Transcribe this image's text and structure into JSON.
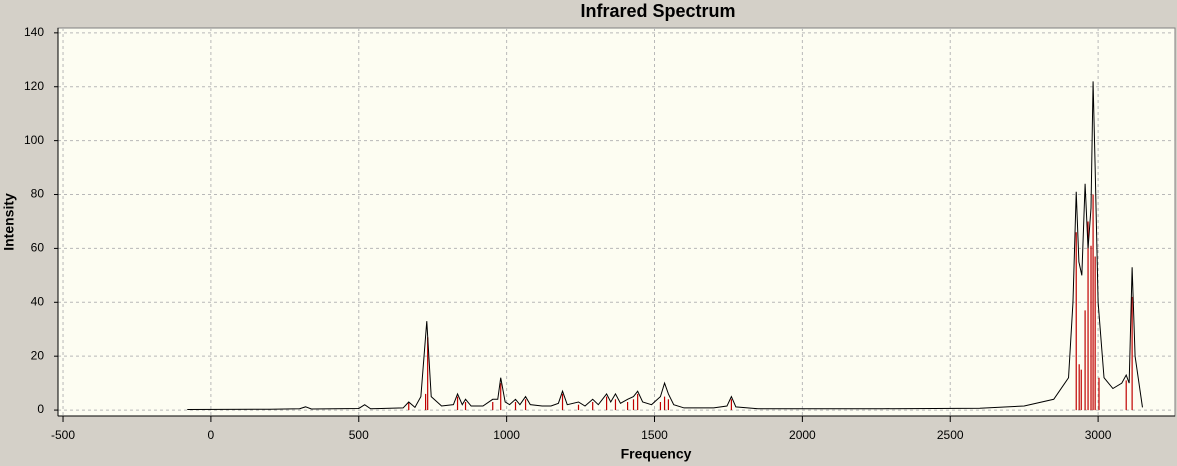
{
  "chart_data": {
    "type": "line",
    "title": "Infrared Spectrum",
    "x_label": "Frequency",
    "y_label": "Intensity",
    "xlim": [
      -517,
      3260
    ],
    "ylim": [
      -2.2,
      141.8
    ],
    "xticks": [
      -500,
      0,
      500,
      1000,
      1500,
      2000,
      2500,
      3000
    ],
    "yticks": [
      0,
      20,
      40,
      60,
      80,
      100,
      120,
      140
    ],
    "grid": true,
    "spectrum": {
      "color": "#000000",
      "x": [
        -80,
        200,
        300,
        320,
        340,
        500,
        520,
        540,
        650,
        669,
        690,
        710,
        730,
        745,
        780,
        820,
        834,
        850,
        861,
        880,
        920,
        953,
        970,
        980,
        995,
        1010,
        1030,
        1045,
        1064,
        1080,
        1120,
        1150,
        1175,
        1189,
        1205,
        1243,
        1265,
        1291,
        1310,
        1338,
        1352,
        1368,
        1385,
        1409,
        1429,
        1443,
        1460,
        1490,
        1520,
        1534,
        1547,
        1565,
        1600,
        1700,
        1745,
        1760,
        1775,
        1850,
        2000,
        2270,
        2600,
        2750,
        2850,
        2900,
        2915,
        2926,
        2935,
        2945,
        2956,
        2966,
        2976,
        2983,
        2990,
        3000,
        3020,
        3050,
        3080,
        3095,
        3105,
        3115,
        3125,
        3150
      ],
      "values": [
        0.2,
        0.3,
        0.5,
        1.2,
        0.4,
        0.6,
        2,
        0.5,
        0.8,
        3,
        1,
        5,
        33,
        5,
        1.5,
        2,
        6,
        2,
        4,
        1.5,
        1.5,
        4,
        4,
        12,
        3,
        2,
        4,
        2,
        5,
        2,
        1.5,
        1.5,
        2.5,
        7,
        2,
        3,
        1.5,
        4,
        2,
        6,
        3,
        6,
        2.5,
        4,
        5,
        7,
        3,
        2,
        5,
        10,
        6,
        2,
        0.8,
        0.8,
        1.5,
        5,
        1.2,
        0.5,
        0.5,
        0.5,
        0.7,
        1.5,
        4,
        12,
        40,
        81,
        55,
        50,
        84,
        60,
        75,
        122,
        90,
        40,
        12,
        8,
        10,
        13,
        10,
        53,
        20,
        1
      ]
    },
    "sticks": {
      "color": "#c00000",
      "x": [
        669,
        726,
        733,
        834,
        861,
        953,
        980,
        1030,
        1064,
        1189,
        1243,
        1291,
        1338,
        1368,
        1409,
        1429,
        1443,
        1520,
        1534,
        1547,
        1760,
        2926,
        2936,
        2943,
        2956,
        2966,
        2976,
        2983,
        2990,
        3003,
        3095,
        3115
      ],
      "values": [
        3,
        6,
        27,
        5,
        3,
        3,
        10,
        3,
        4,
        6,
        2,
        3,
        5,
        4,
        3,
        4,
        6,
        3,
        5,
        4,
        4,
        66,
        17,
        15,
        37,
        70,
        61,
        80,
        57,
        12,
        11,
        42
      ]
    }
  }
}
